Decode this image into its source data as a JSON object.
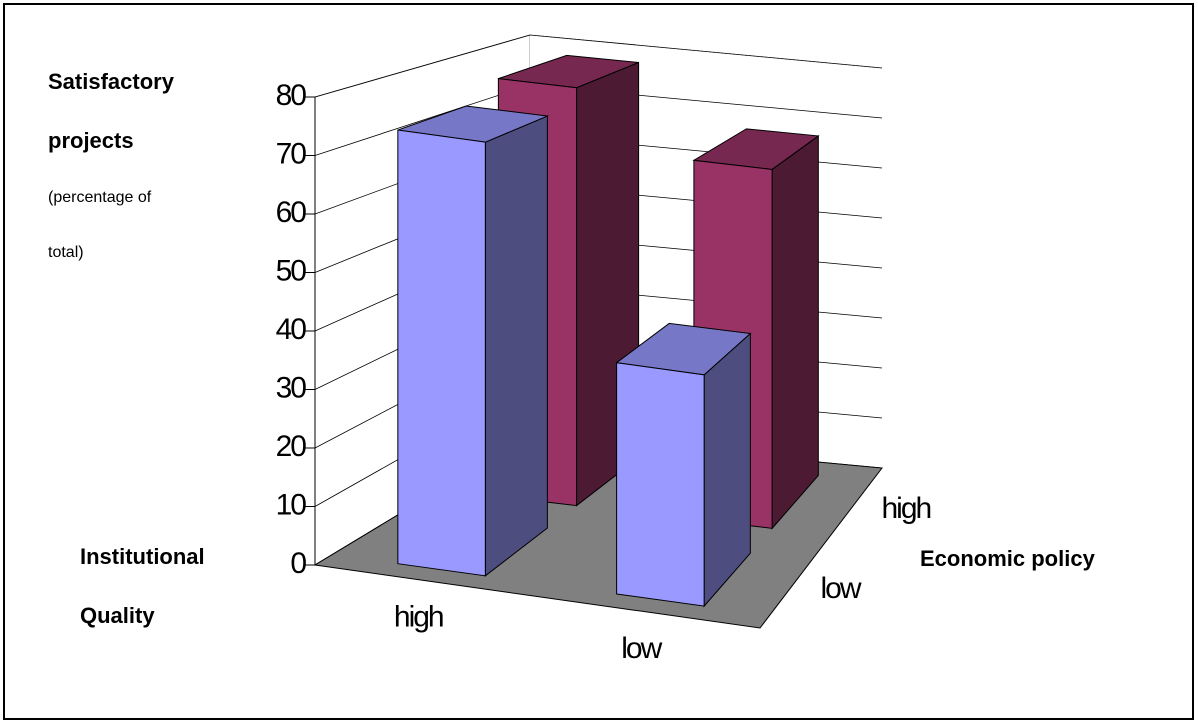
{
  "chart_data": {
    "type": "bar3d",
    "y_label_lines": [
      "Satisfactory",
      "projects"
    ],
    "y_sublabel_lines": [
      "(percentage of",
      "total)"
    ],
    "x_label_lines": [
      "Institutional",
      "Quality"
    ],
    "z_label": "Economic policy",
    "categories": [
      "high",
      "low"
    ],
    "series": [
      {
        "name": "low",
        "color": "#9999ff",
        "values": [
          75,
          40
        ]
      },
      {
        "name": "high",
        "color": "#993366",
        "values": [
          78,
          67
        ]
      }
    ],
    "ylim": [
      0,
      80
    ],
    "yticks": [
      0,
      10,
      20,
      30,
      40,
      50,
      60,
      70,
      80
    ],
    "grid": true
  }
}
